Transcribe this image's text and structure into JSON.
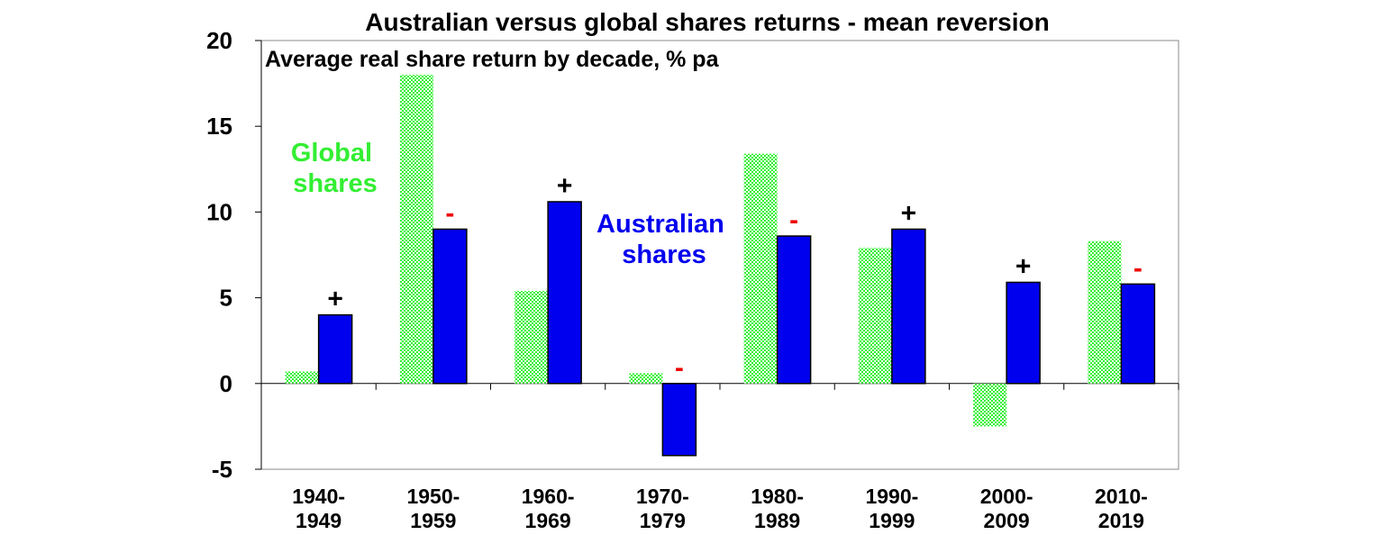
{
  "chart_data": {
    "type": "bar",
    "title": "Australian versus global shares returns - mean reversion",
    "subtitle": "Average real share return by decade,  % pa",
    "categories": [
      [
        "1940-",
        "1949"
      ],
      [
        "1950-",
        "1959"
      ],
      [
        "1960-",
        "1969"
      ],
      [
        "1970-",
        "1979"
      ],
      [
        "1980-",
        "1989"
      ],
      [
        "1990-",
        "1999"
      ],
      [
        "2000-",
        "2009"
      ],
      [
        "2010-",
        "2019"
      ]
    ],
    "series": [
      {
        "name": "Global shares",
        "label_lines": [
          "Global",
          "shares"
        ],
        "color": "#33ee33",
        "pattern": "checker",
        "values": [
          0.7,
          18.0,
          5.4,
          0.6,
          13.4,
          7.9,
          -2.5,
          8.3
        ]
      },
      {
        "name": "Australian shares",
        "label_lines": [
          "Australian",
          "shares"
        ],
        "color": "#0000ee",
        "pattern": "solid",
        "values": [
          4.0,
          9.0,
          10.6,
          -4.2,
          8.6,
          9.0,
          5.9,
          5.8
        ]
      }
    ],
    "markers": [
      "+",
      "-",
      "+",
      "-",
      "-",
      "+",
      "+",
      "-"
    ],
    "marker_colors": {
      "+": "#000000",
      "-": "#ee0000"
    },
    "ylim": [
      -5,
      20
    ],
    "yticks": [
      -5,
      0,
      5,
      10,
      15,
      20
    ],
    "xlabel": "",
    "ylabel": "",
    "grid": false,
    "legend": "inline labels"
  }
}
